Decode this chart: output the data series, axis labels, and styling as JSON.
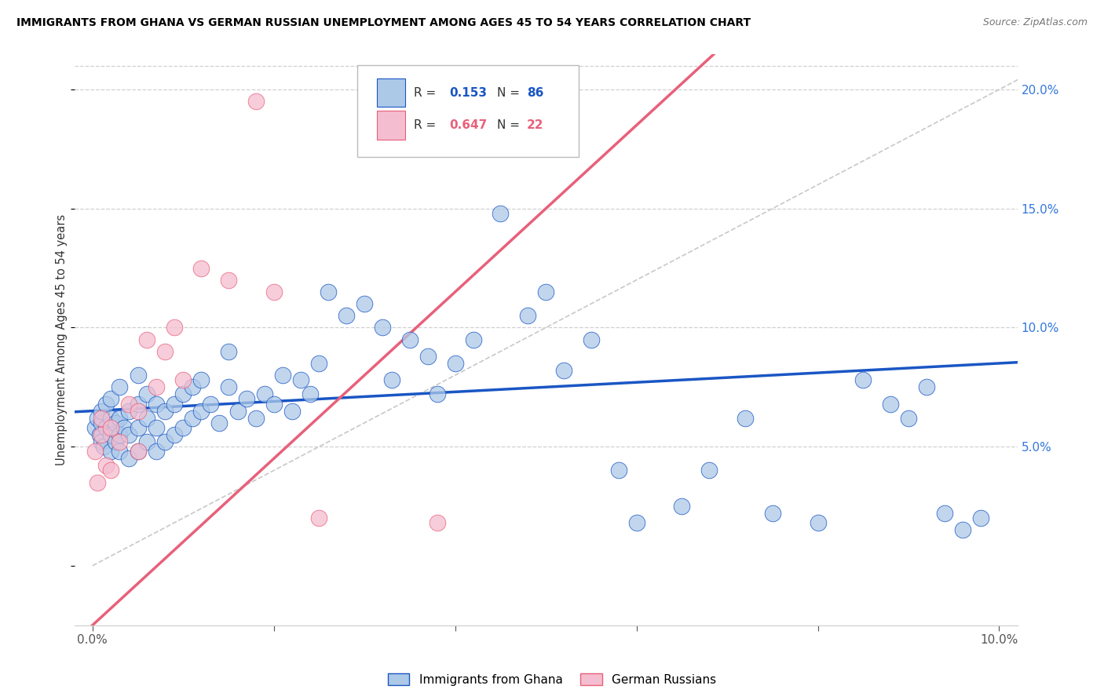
{
  "title": "IMMIGRANTS FROM GHANA VS GERMAN RUSSIAN UNEMPLOYMENT AMONG AGES 45 TO 54 YEARS CORRELATION CHART",
  "source": "Source: ZipAtlas.com",
  "ylabel": "Unemployment Among Ages 45 to 54 years",
  "legend_label1": "Immigrants from Ghana",
  "legend_label2": "German Russians",
  "R1": 0.153,
  "N1": 86,
  "R2": 0.647,
  "N2": 22,
  "xlim": [
    -0.002,
    0.102
  ],
  "ylim": [
    -0.025,
    0.215
  ],
  "xticks": [
    0.0,
    0.02,
    0.04,
    0.06,
    0.08,
    0.1
  ],
  "yticks": [
    0.0,
    0.05,
    0.1,
    0.15,
    0.2
  ],
  "color_blue": "#adc9e8",
  "color_pink": "#f5bdd0",
  "line_blue": "#1a56c4",
  "line_pink": "#e8607a",
  "line_diagonal": "#c8c8c8",
  "background": "#ffffff",
  "ghana_x": [
    0.0003,
    0.0005,
    0.0008,
    0.001,
    0.001,
    0.001,
    0.0012,
    0.0015,
    0.0015,
    0.002,
    0.002,
    0.002,
    0.002,
    0.0025,
    0.0025,
    0.003,
    0.003,
    0.003,
    0.003,
    0.0035,
    0.004,
    0.004,
    0.004,
    0.005,
    0.005,
    0.005,
    0.005,
    0.006,
    0.006,
    0.006,
    0.007,
    0.007,
    0.007,
    0.008,
    0.008,
    0.009,
    0.009,
    0.01,
    0.01,
    0.011,
    0.011,
    0.012,
    0.012,
    0.013,
    0.014,
    0.015,
    0.015,
    0.016,
    0.017,
    0.018,
    0.019,
    0.02,
    0.021,
    0.022,
    0.023,
    0.024,
    0.025,
    0.026,
    0.028,
    0.03,
    0.032,
    0.033,
    0.035,
    0.037,
    0.038,
    0.04,
    0.042,
    0.045,
    0.048,
    0.05,
    0.052,
    0.055,
    0.058,
    0.06,
    0.065,
    0.068,
    0.072,
    0.075,
    0.08,
    0.085,
    0.088,
    0.09,
    0.092,
    0.094,
    0.096,
    0.098
  ],
  "ghana_y": [
    0.058,
    0.062,
    0.055,
    0.052,
    0.06,
    0.065,
    0.05,
    0.058,
    0.068,
    0.048,
    0.055,
    0.062,
    0.07,
    0.052,
    0.06,
    0.048,
    0.055,
    0.062,
    0.075,
    0.058,
    0.045,
    0.055,
    0.065,
    0.048,
    0.058,
    0.068,
    0.08,
    0.052,
    0.062,
    0.072,
    0.048,
    0.058,
    0.068,
    0.052,
    0.065,
    0.055,
    0.068,
    0.058,
    0.072,
    0.062,
    0.075,
    0.065,
    0.078,
    0.068,
    0.06,
    0.075,
    0.09,
    0.065,
    0.07,
    0.062,
    0.072,
    0.068,
    0.08,
    0.065,
    0.078,
    0.072,
    0.085,
    0.115,
    0.105,
    0.11,
    0.1,
    0.078,
    0.095,
    0.088,
    0.072,
    0.085,
    0.095,
    0.148,
    0.105,
    0.115,
    0.082,
    0.095,
    0.04,
    0.018,
    0.025,
    0.04,
    0.062,
    0.022,
    0.018,
    0.078,
    0.068,
    0.062,
    0.075,
    0.022,
    0.015,
    0.02
  ],
  "german_x": [
    0.0003,
    0.0005,
    0.001,
    0.001,
    0.0015,
    0.002,
    0.002,
    0.003,
    0.004,
    0.005,
    0.005,
    0.006,
    0.007,
    0.008,
    0.009,
    0.01,
    0.012,
    0.015,
    0.018,
    0.02,
    0.025,
    0.038
  ],
  "german_y": [
    0.048,
    0.035,
    0.055,
    0.062,
    0.042,
    0.04,
    0.058,
    0.052,
    0.068,
    0.065,
    0.048,
    0.095,
    0.075,
    0.09,
    0.1,
    0.078,
    0.125,
    0.12,
    0.195,
    0.115,
    0.02,
    0.018
  ]
}
